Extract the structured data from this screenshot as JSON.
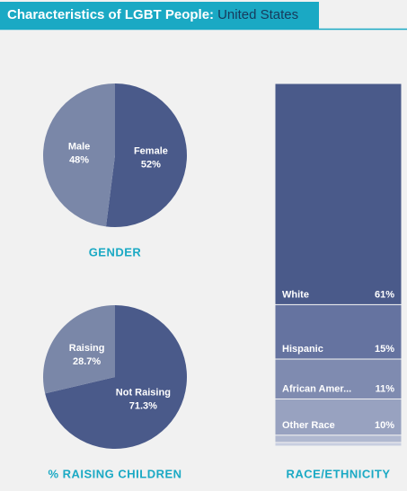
{
  "header": {
    "title": "Characteristics of LGBT People:",
    "location": "United States"
  },
  "chart_data": [
    {
      "type": "pie",
      "title": "GENDER",
      "categories": [
        "Female",
        "Male"
      ],
      "values": [
        52,
        48
      ],
      "value_labels": [
        "52%",
        "48%"
      ],
      "colors": [
        "#4a5a8a",
        "#7a87a8"
      ]
    },
    {
      "type": "pie",
      "title": "% RAISING CHILDREN",
      "categories": [
        "Not Raising",
        "Raising"
      ],
      "values": [
        71.3,
        28.7
      ],
      "value_labels": [
        "71.3%",
        "28.7%"
      ],
      "colors": [
        "#4a5a8a",
        "#7a87a8"
      ]
    },
    {
      "type": "stacked-column",
      "title": "RACE/ETHNICITY",
      "categories": [
        "White",
        "Hispanic",
        "African Amer...",
        "Other Race",
        null,
        null
      ],
      "values": [
        61,
        15,
        11,
        10,
        2,
        1
      ],
      "value_labels": [
        "61%",
        "15%",
        "11%",
        "10%",
        null,
        null
      ],
      "colors": [
        "#4a5a8a",
        "#6573a0",
        "#7f8bb0",
        "#98a2c0",
        "#b0b8d0",
        "#c8cee0"
      ],
      "ylim": [
        0,
        100
      ]
    }
  ]
}
